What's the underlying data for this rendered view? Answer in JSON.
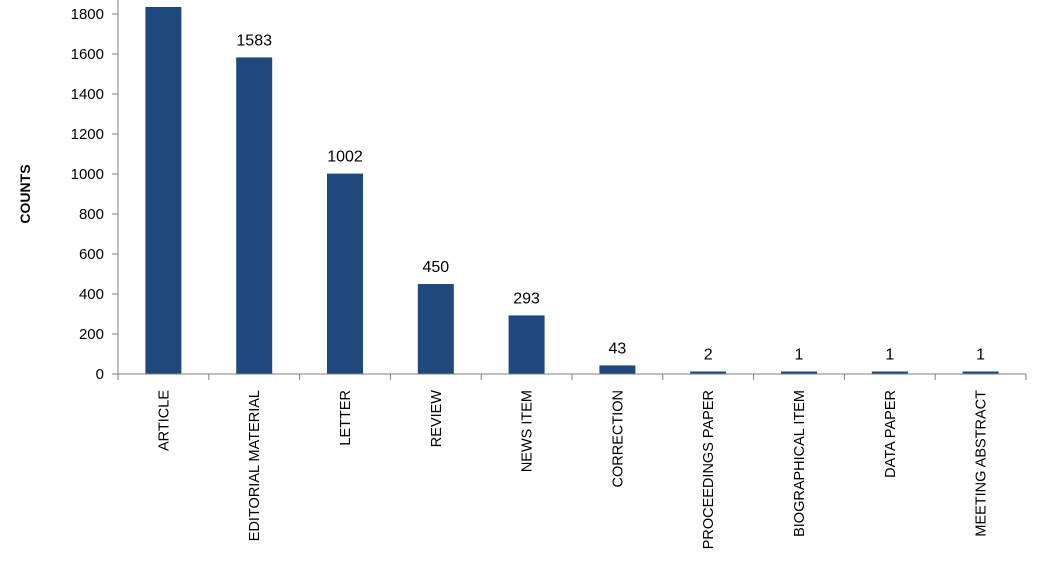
{
  "chart_data": {
    "type": "bar",
    "title": "",
    "xlabel": "",
    "ylabel": "COUNTS",
    "ylim": [
      0,
      1800
    ],
    "yticks": [
      0,
      200,
      400,
      600,
      800,
      1000,
      1200,
      1400,
      1600,
      1800
    ],
    "grid": false,
    "legend": "none",
    "bar_color": "#1f497d",
    "categories": [
      "ARTICLE",
      "EDITORIAL MATERIAL",
      "LETTER",
      "REVIEW",
      "NEWS ITEM",
      "CORRECTION",
      "PROCEEDINGS PAPER",
      "BIOGRAPHICAL ITEM",
      "DATA PAPER",
      "MEETING ABSTRACT"
    ],
    "values": [
      1835,
      1583,
      1002,
      450,
      293,
      43,
      2,
      1,
      1,
      1
    ],
    "data_labels": [
      null,
      "1583",
      "1002",
      "450",
      "293",
      "43",
      "2",
      "1",
      "1",
      "1"
    ]
  }
}
